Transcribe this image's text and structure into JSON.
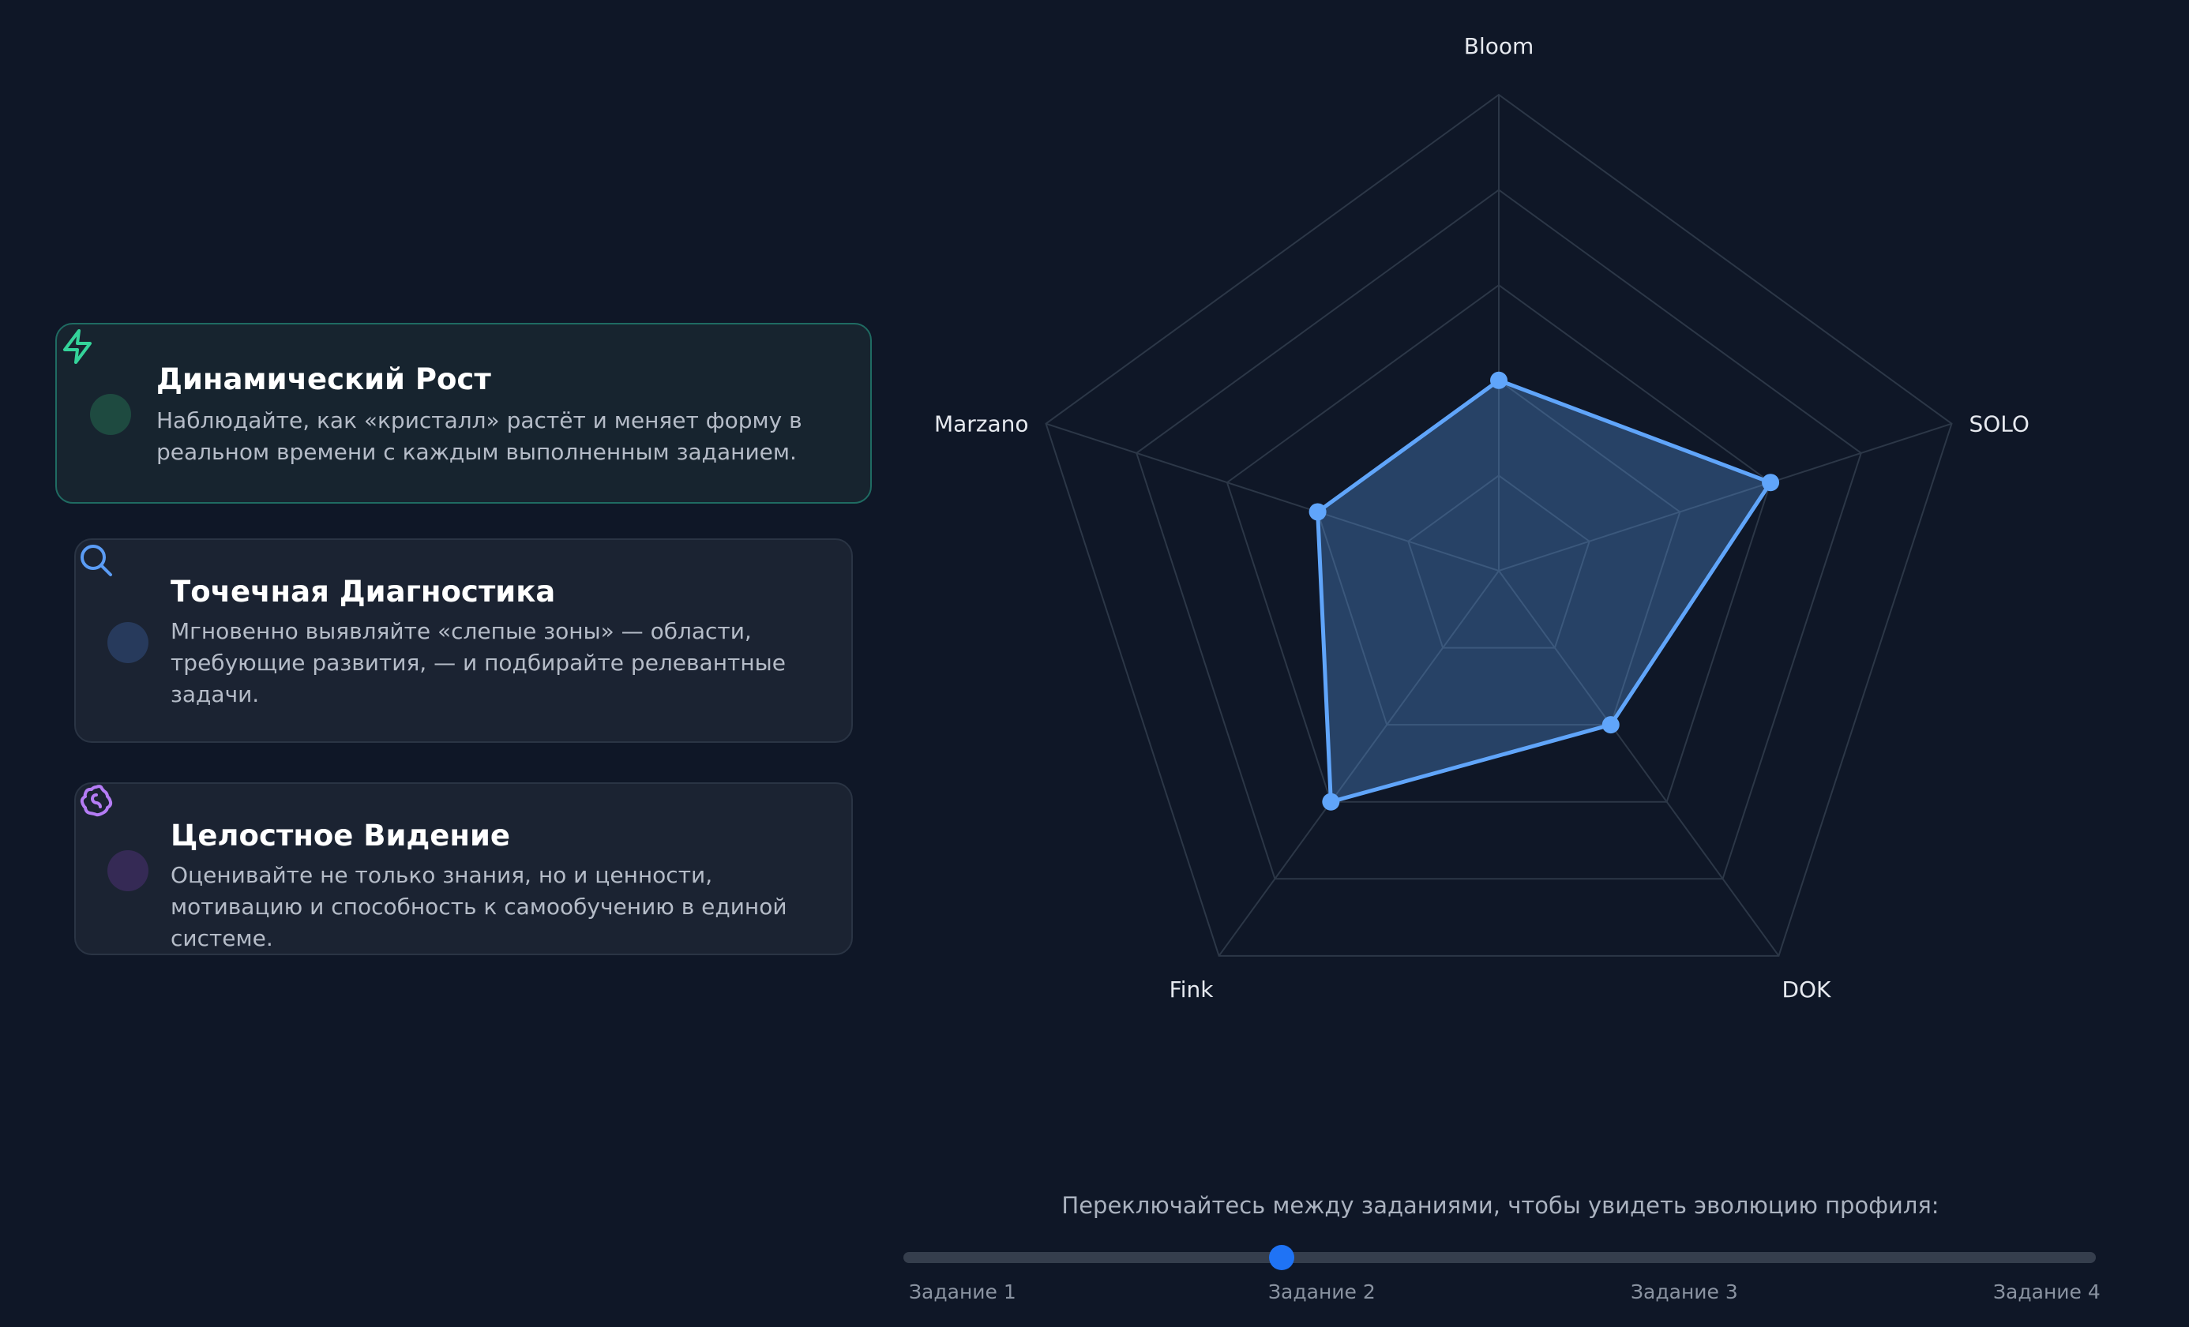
{
  "cards": [
    {
      "title": "Динамический Рост",
      "description": "Наблюдайте, как «кристалл» растёт и меняет форму в реальном времени с каждым выполненным заданием.",
      "icon": "lightning-icon",
      "accent": "#34d39a",
      "active": true
    },
    {
      "title": "Точечная Диагностика",
      "description": "Мгновенно выявляйте «слепые зоны» — области, требующие развития, — и подбирайте релевантные задачи.",
      "icon": "search-icon",
      "accent": "#5b9cf5",
      "active": false
    },
    {
      "title": "Целостное Видение",
      "description": "Оценивайте не только знания, но и ценности, мотивацию и способность к самообучению в единой системе.",
      "icon": "brain-icon",
      "accent": "#b57cf5",
      "active": false
    }
  ],
  "chart_data": {
    "type": "radar",
    "axes": [
      "Bloom",
      "SOLO",
      "DOK",
      "Fink",
      "Marzano"
    ],
    "rings": 5,
    "max": 5,
    "series": [
      {
        "values": [
          2,
          3,
          2,
          3,
          2
        ],
        "color": "#60a5fa"
      }
    ],
    "grid": true
  },
  "slider": {
    "hint": "Переключайтесь между заданиями, чтобы увидеть эволюцию профиля:",
    "labels": [
      "Задание 1",
      "Задание 2",
      "Задание 3",
      "Задание 4"
    ],
    "selected_index": 1
  }
}
